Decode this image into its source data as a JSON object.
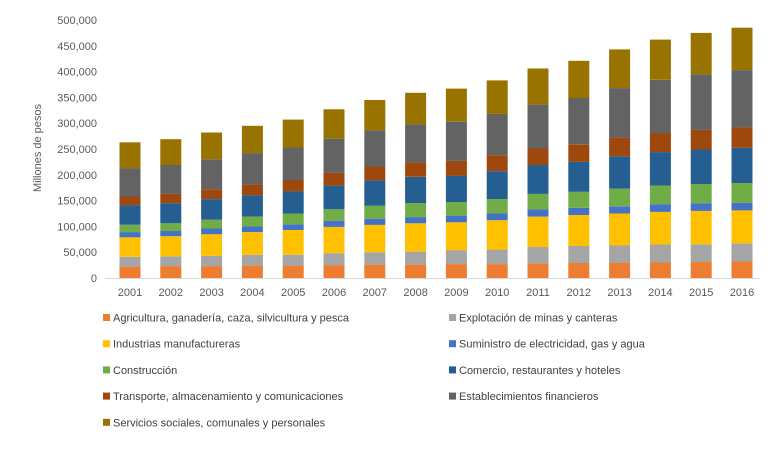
{
  "chart_data": {
    "type": "bar",
    "stacked": true,
    "ylabel": "Millones de pesos",
    "ylim": [
      0,
      500000
    ],
    "y_tick_step": 50000,
    "grid": false,
    "legend_placement": "bottom",
    "categories": [
      "2001",
      "2002",
      "2003",
      "2004",
      "2005",
      "2006",
      "2007",
      "2008",
      "2009",
      "2010",
      "2011",
      "2012",
      "2013",
      "2014",
      "2015",
      "2016"
    ],
    "series": [
      {
        "name": "Agricultura, ganadería, caza, silvicultura y pesca",
        "color": "#ED7D31",
        "values": [
          22000,
          23000,
          23000,
          24000,
          24000,
          25000,
          26000,
          26000,
          27000,
          27000,
          28000,
          29000,
          29000,
          30000,
          31000,
          32000
        ]
      },
      {
        "name": "Explotación de minas y canteras",
        "color": "#A5A5A5",
        "values": [
          19000,
          19000,
          20000,
          21000,
          21000,
          23000,
          24000,
          25000,
          27000,
          28000,
          32000,
          33000,
          34000,
          35000,
          34000,
          35000
        ]
      },
      {
        "name": "Industrias manufactureras",
        "color": "#FFC000",
        "values": [
          38000,
          39000,
          42000,
          44000,
          48000,
          51000,
          53000,
          55000,
          54000,
          57000,
          59000,
          60000,
          62000,
          63000,
          65000,
          64000
        ]
      },
      {
        "name": "Suministro de electricidad, gas y agua",
        "color": "#4472C4",
        "values": [
          10000,
          10000,
          11000,
          11000,
          11000,
          12000,
          12000,
          12000,
          13000,
          13000,
          14000,
          14000,
          14000,
          15000,
          15000,
          15000
        ]
      },
      {
        "name": "Construcción",
        "color": "#70AD47",
        "values": [
          14000,
          15000,
          17000,
          19000,
          21000,
          22000,
          25000,
          27000,
          26000,
          28000,
          30000,
          31000,
          34000,
          36000,
          37000,
          38000
        ]
      },
      {
        "name": "Comercio,  restaurantes y hoteles",
        "color": "#255E91",
        "values": [
          38000,
          39000,
          40000,
          41000,
          43000,
          46000,
          49000,
          51000,
          51000,
          54000,
          56000,
          58000,
          63000,
          65000,
          67000,
          68000
        ]
      },
      {
        "name": "Transporte, almacenamiento y comunicaciones",
        "color": "#9E480E",
        "values": [
          17000,
          18000,
          19000,
          21000,
          22000,
          25000,
          27000,
          28000,
          29000,
          31000,
          32000,
          34000,
          36000,
          37000,
          38000,
          40000
        ]
      },
      {
        "name": "Establecimientos financieros",
        "color": "#636363",
        "values": [
          55000,
          56000,
          58000,
          61000,
          63000,
          66000,
          70000,
          74000,
          76000,
          80000,
          85000,
          90000,
          96000,
          103000,
          108000,
          111000
        ]
      },
      {
        "name": "Servicios sociales, comunales y personales",
        "color": "#997300",
        "values": [
          50000,
          50000,
          52000,
          53000,
          54000,
          57000,
          59000,
          61000,
          64000,
          65000,
          70000,
          72000,
          75000,
          78000,
          80000,
          82000
        ]
      }
    ]
  }
}
